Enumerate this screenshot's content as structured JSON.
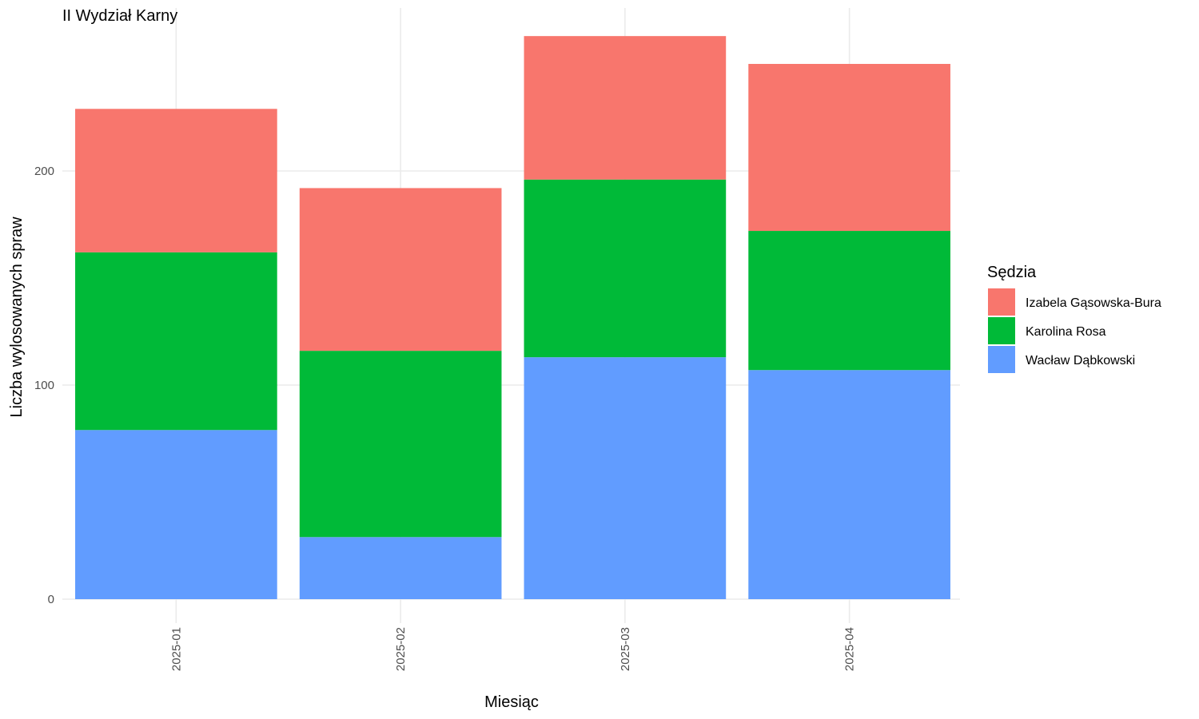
{
  "chart_data": {
    "type": "bar",
    "stacked": true,
    "title": "II Wydział Karny",
    "xlabel": "Miesiąc",
    "ylabel": "Liczba wylosowanych spraw",
    "categories": [
      "2025-01",
      "2025-02",
      "2025-03",
      "2025-04"
    ],
    "series": [
      {
        "name": "Wacław Dąbkowski",
        "color": "#619CFF",
        "values": [
          79,
          29,
          113,
          107
        ]
      },
      {
        "name": "Karolina Rosa",
        "color": "#00BA38",
        "values": [
          83,
          87,
          83,
          65
        ]
      },
      {
        "name": "Izabela Gąsowska-Bura",
        "color": "#F8766D",
        "values": [
          67,
          76,
          67,
          78
        ]
      }
    ],
    "legend_order": [
      "Izabela Gąsowska-Bura",
      "Karolina Rosa",
      "Wacław Dąbkowski"
    ],
    "ylim": [
      0,
      276
    ],
    "yticks": [
      0,
      100,
      200
    ],
    "ytick_labels": [
      "0",
      "100",
      "200"
    ],
    "grid": true,
    "legend_title": "Sędzia",
    "legend_position": "right"
  }
}
